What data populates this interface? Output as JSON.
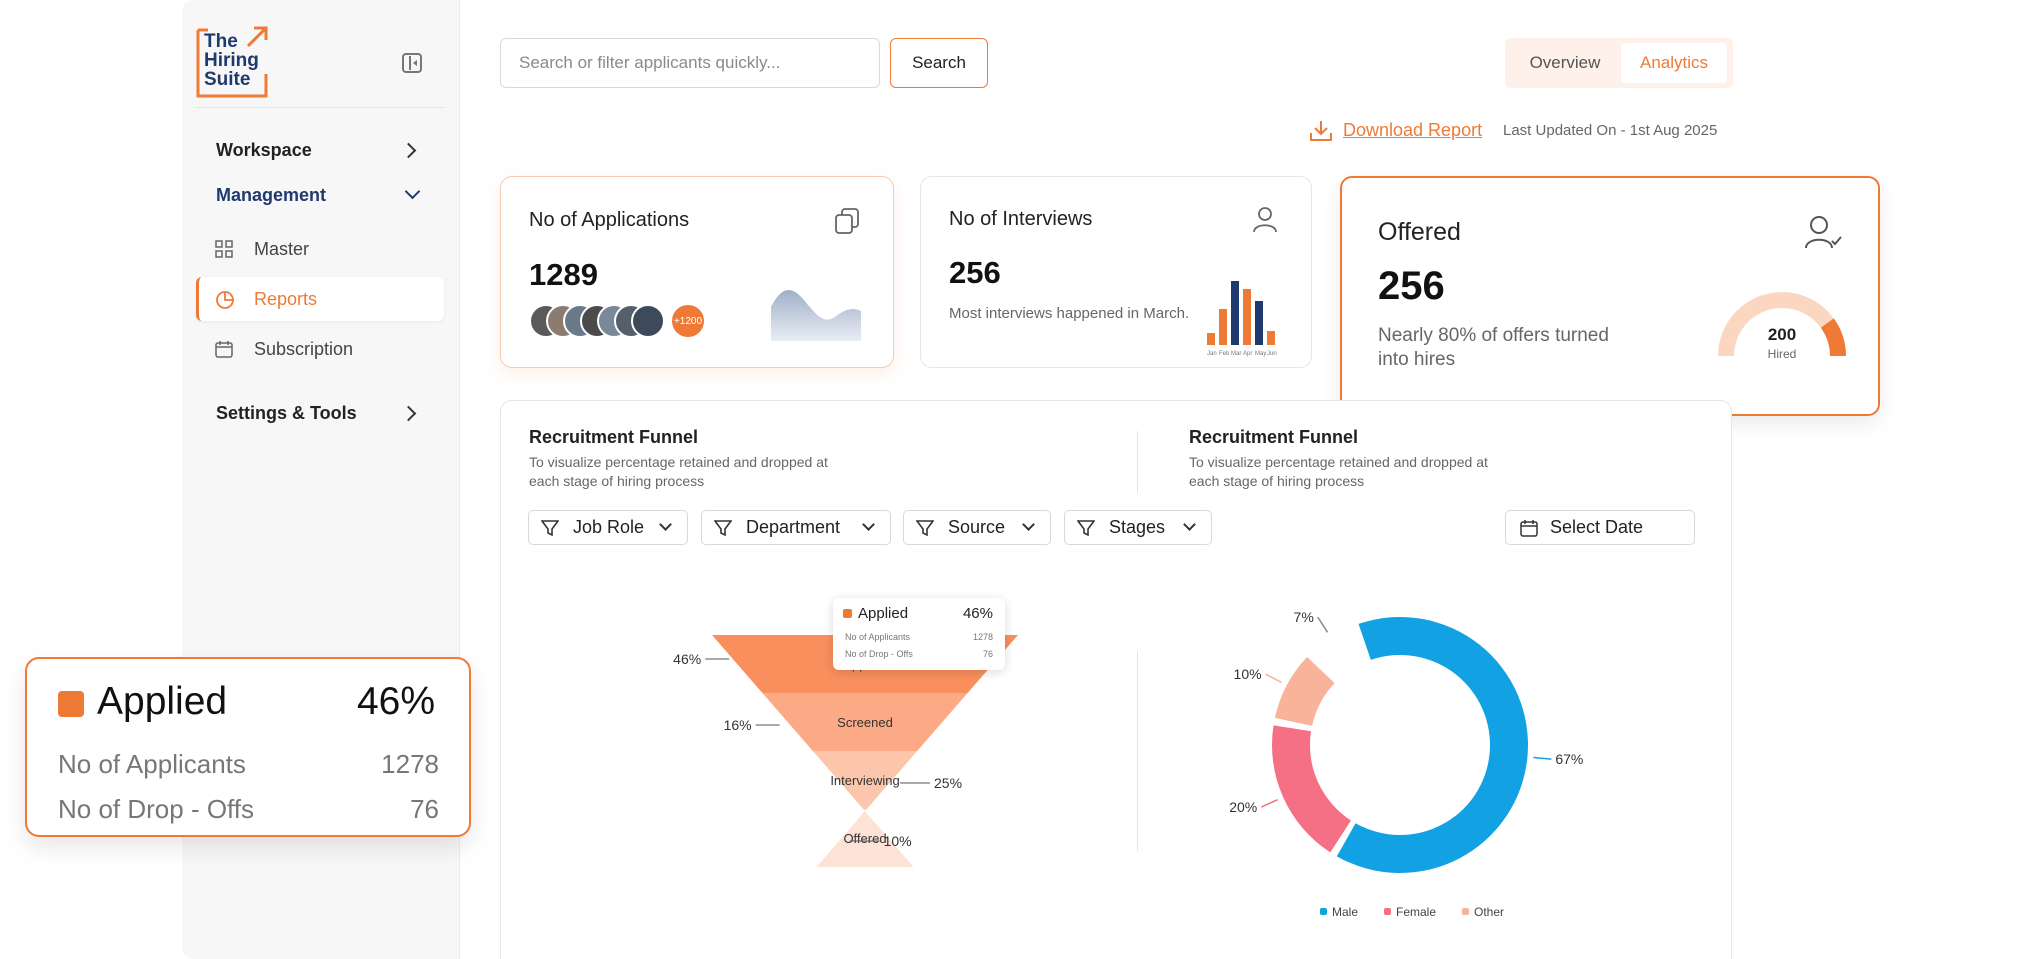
{
  "logo": {
    "line1": "The",
    "line2": "Hiring",
    "line3": "Suite"
  },
  "sidebar": {
    "workspace": "Workspace",
    "management": "Management",
    "items": [
      {
        "label": "Master",
        "icon": "grid-icon"
      },
      {
        "label": "Reports",
        "icon": "pie-chart-icon",
        "active": true
      },
      {
        "label": "Subscription",
        "icon": "calendar-icon"
      }
    ],
    "settings": "Settings & Tools"
  },
  "search": {
    "placeholder": "Search or filter applicants quickly...",
    "button": "Search"
  },
  "tabs": {
    "overview": "Overview",
    "analytics": "Analytics"
  },
  "report": {
    "download": "Download Report",
    "updated": "Last Updated On - 1st Aug 2025"
  },
  "cards": {
    "applications": {
      "title": "No of Applications",
      "value": "1289",
      "more": "+1200"
    },
    "interviews": {
      "title": "No of Interviews",
      "value": "256",
      "note": "Most interviews happened in March.",
      "months": [
        "Jan",
        "Feb",
        "Mar",
        "Apr",
        "May",
        "Jun"
      ]
    },
    "offered": {
      "title": "Offered",
      "value": "256",
      "note": "Nearly 80% of offers turned into hires",
      "gauge_value": "200",
      "gauge_label": "Hired",
      "gauge_fraction": 0.8
    }
  },
  "funnel_section": {
    "title": "Recruitment Funnel",
    "subtitle": "To visualize percentage retained and dropped at each stage of hiring process"
  },
  "donut_section": {
    "title": "Recruitment Funnel",
    "subtitle": "To visualize percentage retained and dropped at each stage of hiring process"
  },
  "filters": {
    "job_role": "Job Role",
    "department": "Department",
    "source": "Source",
    "stages": "Stages",
    "date": "Select Date"
  },
  "tooltip": {
    "stage": "Applied",
    "percent": "46%",
    "applicants_label": "No of Applicants",
    "applicants": "1278",
    "dropoffs_label": "No of Drop - Offs",
    "dropoffs": "76"
  },
  "colors": {
    "accent": "#ee7a36",
    "navy": "#1f3a6e",
    "male": "#12a2e3",
    "female": "#f56f85",
    "other": "#f9b39a"
  },
  "chart_data": [
    {
      "type": "funnel",
      "stages": [
        {
          "label": "Applied",
          "value": 46
        },
        {
          "label": "Screened",
          "value": 16
        },
        {
          "label": "Interviewing",
          "value": 25
        },
        {
          "label": "Offered",
          "value": 10
        }
      ]
    },
    {
      "type": "pie",
      "slices": [
        {
          "label": "Male",
          "value": 67
        },
        {
          "label": "Female",
          "value": 20
        },
        {
          "label": "Other",
          "value": 10
        },
        {
          "label": "",
          "value": 7
        }
      ],
      "legend": [
        "Male",
        "Female",
        "Other"
      ]
    }
  ]
}
